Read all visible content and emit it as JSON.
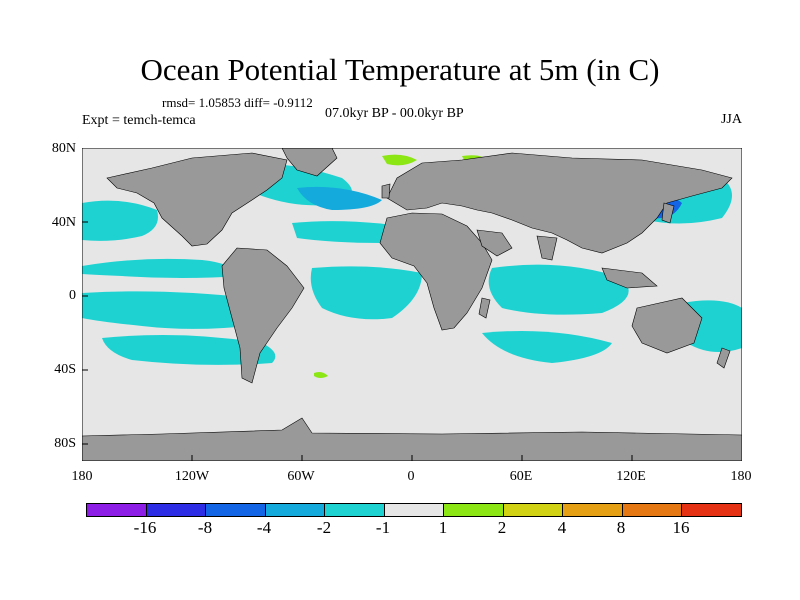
{
  "title": "Ocean Potential Temperature at 5m (in C)",
  "stats": "rmsd= 1.05853 diff= -0.9112",
  "experiment": "Expt = temch-temca",
  "period": "07.0kyr BP - 00.0kyr BP",
  "season": "JJA",
  "lat_labels": [
    "80N",
    "40N",
    "0",
    "40S",
    "80S"
  ],
  "lon_labels": [
    "180",
    "120W",
    "60W",
    "0",
    "60E",
    "120E",
    "180"
  ],
  "legend": {
    "colors": [
      "#8c1ee6",
      "#2d2de6",
      "#1464e6",
      "#14aadc",
      "#1ed2d2",
      "#e6e6e6",
      "#8ce614",
      "#d2d214",
      "#e6a014",
      "#e67814",
      "#e63214"
    ],
    "labels": [
      "-16",
      "-8",
      "-4",
      "-2",
      "-1",
      "1",
      "2",
      "4",
      "8",
      "16"
    ]
  },
  "colors": {
    "land": "#999999",
    "ocean_neutral": "#e6e6e6",
    "cyan": "#1ed2d2",
    "light_blue": "#14aadc",
    "blue": "#1464e6",
    "green": "#8ce614"
  }
}
